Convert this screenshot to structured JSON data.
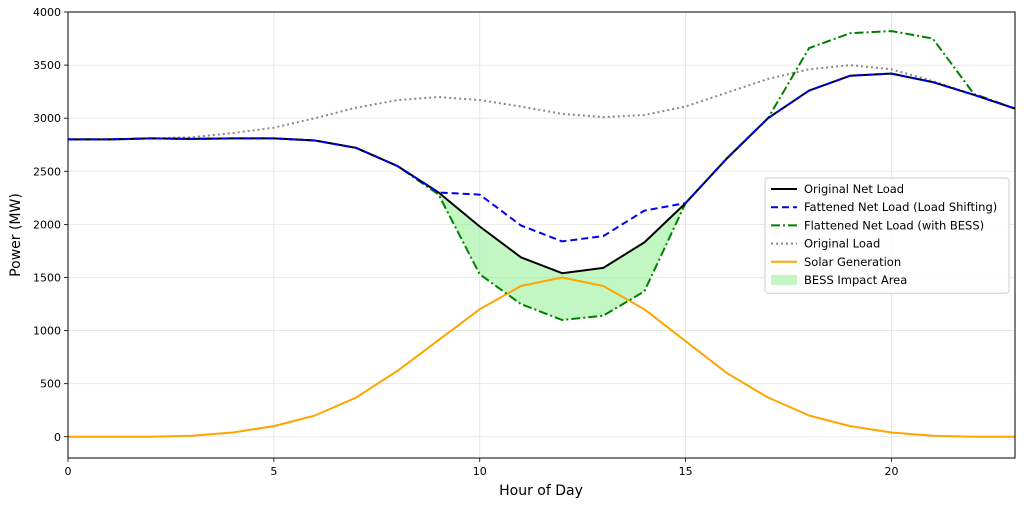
{
  "chart_data": {
    "type": "line",
    "xlabel": "Hour of Day",
    "ylabel": "Power (MW)",
    "xlim": [
      0,
      23
    ],
    "ylim": [
      -200,
      4000
    ],
    "xticks": [
      0,
      5,
      10,
      15,
      20
    ],
    "yticks": [
      0,
      500,
      1000,
      1500,
      2000,
      2500,
      3000,
      3500,
      4000
    ],
    "grid": true,
    "legend_position": "center-right",
    "x": [
      0,
      1,
      2,
      3,
      4,
      5,
      6,
      7,
      8,
      9,
      10,
      11,
      12,
      13,
      14,
      15,
      16,
      17,
      18,
      19,
      20,
      21,
      22,
      23
    ],
    "series": [
      {
        "name": "Original Net Load",
        "color": "#000000",
        "style": "solid",
        "values": [
          2800,
          2800,
          2810,
          2805,
          2810,
          2810,
          2790,
          2720,
          2550,
          2300,
          1980,
          1690,
          1540,
          1590,
          1830,
          2200,
          2620,
          3000,
          3260,
          3400,
          3420,
          3340,
          3220,
          3090
        ]
      },
      {
        "name": "Fattened Net Load (Load Shifting)",
        "color": "#0000ee",
        "style": "dashed",
        "values": [
          2800,
          2800,
          2810,
          2805,
          2810,
          2810,
          2790,
          2720,
          2550,
          2300,
          2280,
          1990,
          1840,
          1890,
          2130,
          2200,
          2620,
          3000,
          3260,
          3400,
          3420,
          3340,
          3220,
          3090
        ]
      },
      {
        "name": "Flattened Net Load (with BESS)",
        "color": "#008000",
        "style": "dashdot",
        "values": [
          2800,
          2800,
          2810,
          2805,
          2810,
          2810,
          2790,
          2720,
          2550,
          2280,
          1530,
          1250,
          1100,
          1140,
          1370,
          2200,
          2620,
          3000,
          3660,
          3800,
          3820,
          3750,
          3230,
          3090
        ]
      },
      {
        "name": "Original Load",
        "color": "#888888",
        "style": "dotted",
        "values": [
          2800,
          2800,
          2810,
          2820,
          2860,
          2910,
          3000,
          3100,
          3170,
          3200,
          3170,
          3110,
          3040,
          3010,
          3030,
          3110,
          3240,
          3370,
          3460,
          3500,
          3460,
          3350,
          3220,
          3090
        ]
      },
      {
        "name": "Solar Generation",
        "color": "#ffa500",
        "style": "solid",
        "values": [
          0,
          0,
          0,
          10,
          40,
          100,
          200,
          370,
          620,
          910,
          1200,
          1420,
          1500,
          1420,
          1200,
          900,
          600,
          370,
          200,
          100,
          40,
          10,
          0,
          0
        ]
      }
    ],
    "fill": {
      "name": "BESS Impact Area",
      "color": "#90ee90",
      "between": [
        "Original Net Load",
        "Flattened Net Load (with BESS)"
      ],
      "x_range": [
        9,
        15
      ]
    }
  }
}
